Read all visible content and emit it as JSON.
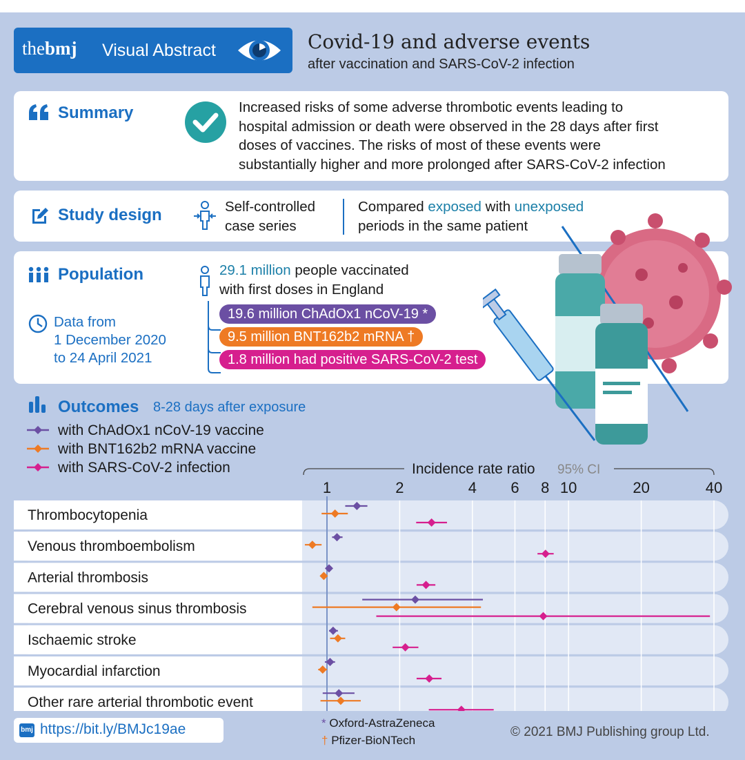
{
  "header": {
    "brand_prefix": "the",
    "brand_name": "bmj",
    "brand_section": "Visual Abstract",
    "title": "Covid-19 and adverse events",
    "subtitle": "after vaccination and SARS-CoV-2 infection"
  },
  "summary": {
    "label": "Summary",
    "lines": [
      "Increased risks of some adverse thrombotic events leading to",
      "hospital admission or death were observed in the 28 days after first",
      "doses of vaccines. The risks of most of these events were",
      "substantially higher and more prolonged after SARS-CoV-2 infection"
    ]
  },
  "study_design": {
    "label": "Study design",
    "design_line1": "Self-controlled",
    "design_line2": "case series",
    "compare_prefix": "Compared ",
    "compare_exposed": "exposed",
    "compare_mid": " with ",
    "compare_unexposed": "unexposed",
    "compare_line2": "periods in the same patient"
  },
  "population": {
    "label": "Population",
    "total_highlight": "29.1 million",
    "total_rest": " people vaccinated",
    "total_line2": "with first doses in England",
    "groups": [
      {
        "text": "19.6 million ChAdOx1 nCoV-19 *",
        "color": "#6b4fa3"
      },
      {
        "text": "9.5 million BNT162b2 mRNA †",
        "color": "#ee7a24"
      },
      {
        "text": "1.8 million had positive SARS-CoV-2 test",
        "color": "#d61f8e"
      }
    ],
    "data_line1": "Data from",
    "data_line2": "1 December 2020",
    "data_line3": "to 24 April 2021"
  },
  "outcomes": {
    "label": "Outcomes",
    "sublabel": "8-28 days after exposure"
  },
  "chart_data": {
    "type": "scatter",
    "title": "Incidence rate ratio",
    "title_suffix": "95% CI",
    "x_scale": "log",
    "xlim": [
      0.8,
      40
    ],
    "x_ticks": [
      1,
      2,
      4,
      6,
      8,
      10,
      20,
      40
    ],
    "x_tick_labels": [
      "1",
      "2",
      "4",
      "6",
      "8",
      "10",
      "20",
      "40"
    ],
    "reference_line": 1,
    "categories": [
      "Thrombocytopenia",
      "Venous thromboembolism",
      "Arterial thrombosis",
      "Cerebral venous sinus thrombosis",
      "Ischaemic stroke",
      "Myocardial infarction",
      "Other rare arterial thrombotic event"
    ],
    "series": [
      {
        "name": "with ChAdOx1 nCoV-19 vaccine",
        "color": "#6b4fa3",
        "values": [
          1.33,
          1.1,
          1.02,
          2.32,
          1.06,
          1.03,
          1.12
        ],
        "ci_low": [
          1.19,
          1.05,
          0.99,
          1.4,
          1.02,
          0.98,
          0.96
        ],
        "ci_high": [
          1.47,
          1.16,
          1.04,
          4.42,
          1.11,
          1.08,
          1.3
        ]
      },
      {
        "name": "with BNT162b2 mRNA vaccine",
        "color": "#ee7a24",
        "values": [
          1.08,
          0.87,
          0.97,
          1.94,
          1.11,
          0.96,
          1.14
        ],
        "ci_low": [
          0.95,
          0.81,
          0.94,
          0.87,
          1.03,
          0.92,
          0.94
        ],
        "ci_high": [
          1.22,
          0.95,
          1.0,
          4.34,
          1.19,
          1.0,
          1.38
        ]
      },
      {
        "name": "with SARS-CoV-2 infection",
        "color": "#d61f8e",
        "values": [
          2.71,
          8.03,
          2.57,
          7.86,
          2.11,
          2.65,
          3.6
        ],
        "ci_low": [
          2.34,
          7.44,
          2.35,
          1.6,
          1.87,
          2.35,
          2.64
        ],
        "ci_high": [
          3.14,
          8.68,
          2.81,
          38.5,
          2.39,
          2.98,
          4.9
        ]
      }
    ]
  },
  "footer": {
    "link_badge": "bmj",
    "link": "https://bit.ly/BMJc19ae",
    "note1_symbol": "*",
    "note1": "Oxford-AstraZeneca",
    "note2_symbol": "†",
    "note2": "Pfizer-BioNTech",
    "copyright": "© 2021 BMJ Publishing group Ltd."
  },
  "colors": {
    "accent": "#1b6fc2",
    "background": "#bccbe6",
    "row_band": "#e1e8f5",
    "check": "#26a1a3",
    "virus": "#d96a84"
  }
}
